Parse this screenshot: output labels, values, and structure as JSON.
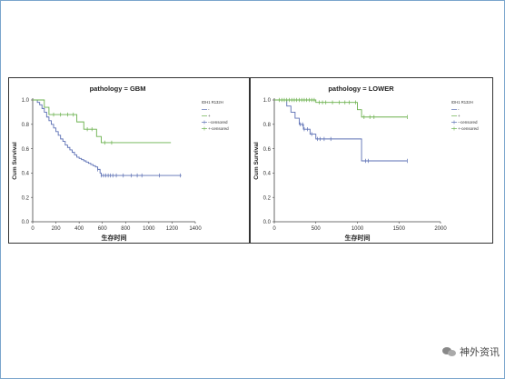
{
  "chart_data": [
    {
      "type": "line",
      "title": "pathology = GBM",
      "xlabel": "生存时间",
      "ylabel": "Cum Survival",
      "xlim": [
        0,
        1400
      ],
      "ylim": [
        0.0,
        1.0
      ],
      "xticks": [
        "0",
        "200",
        "400",
        "600",
        "800",
        "1000",
        "1200",
        "1400"
      ],
      "yticks": [
        "0.0",
        "0.2",
        "0.4",
        "0.6",
        "0.8",
        "1.0"
      ],
      "legend_title": "IDH1 R132H",
      "legend": [
        "-",
        "+",
        "--censored",
        "+-censored"
      ],
      "series": [
        {
          "color": "#5b6fb4",
          "steps": [
            [
              0,
              1.0
            ],
            [
              40,
              0.98
            ],
            [
              60,
              0.96
            ],
            [
              80,
              0.93
            ],
            [
              100,
              0.9
            ],
            [
              120,
              0.86
            ],
            [
              140,
              0.83
            ],
            [
              160,
              0.8
            ],
            [
              180,
              0.77
            ],
            [
              200,
              0.74
            ],
            [
              220,
              0.71
            ],
            [
              240,
              0.68
            ],
            [
              260,
              0.66
            ],
            [
              280,
              0.63
            ],
            [
              300,
              0.61
            ],
            [
              320,
              0.59
            ],
            [
              340,
              0.57
            ],
            [
              360,
              0.55
            ],
            [
              380,
              0.53
            ],
            [
              400,
              0.52
            ],
            [
              420,
              0.51
            ],
            [
              440,
              0.5
            ],
            [
              460,
              0.49
            ],
            [
              480,
              0.48
            ],
            [
              500,
              0.47
            ],
            [
              520,
              0.46
            ],
            [
              540,
              0.45
            ],
            [
              560,
              0.43
            ],
            [
              580,
              0.4
            ],
            [
              590,
              0.38
            ],
            [
              1280,
              0.38
            ]
          ],
          "censored": [
            560,
            590,
            610,
            630,
            650,
            670,
            690,
            720,
            780,
            850,
            900,
            940,
            1090,
            1270
          ]
        },
        {
          "color": "#6ab04c",
          "steps": [
            [
              0,
              1.0
            ],
            [
              100,
              0.94
            ],
            [
              140,
              0.88
            ],
            [
              380,
              0.82
            ],
            [
              440,
              0.76
            ],
            [
              550,
              0.7
            ],
            [
              590,
              0.65
            ],
            [
              1190,
              0.65
            ]
          ],
          "censored": [
            180,
            240,
            300,
            350,
            470,
            510,
            620,
            680
          ]
        }
      ]
    },
    {
      "type": "line",
      "title": "pathology = LOWER",
      "xlabel": "生存时间",
      "ylabel": "Cum Survival",
      "xlim": [
        0,
        2000
      ],
      "ylim": [
        0.0,
        1.0
      ],
      "xticks": [
        "0",
        "500",
        "1000",
        "1500",
        "2000"
      ],
      "yticks": [
        "0.0",
        "0.2",
        "0.4",
        "0.6",
        "0.8",
        "1.0"
      ],
      "legend_title": "IDH1 R132H",
      "legend": [
        "-",
        "+",
        "--censored",
        "+-censored"
      ],
      "series": [
        {
          "color": "#5b6fb4",
          "steps": [
            [
              0,
              1.0
            ],
            [
              150,
              0.95
            ],
            [
              200,
              0.9
            ],
            [
              250,
              0.85
            ],
            [
              300,
              0.8
            ],
            [
              350,
              0.76
            ],
            [
              430,
              0.72
            ],
            [
              500,
              0.68
            ],
            [
              1050,
              0.5
            ],
            [
              1600,
              0.5
            ]
          ],
          "censored": [
            310,
            340,
            360,
            400,
            450,
            520,
            550,
            600,
            680,
            1100,
            1130,
            1600
          ]
        },
        {
          "color": "#6ab04c",
          "steps": [
            [
              0,
              1.0
            ],
            [
              500,
              0.98
            ],
            [
              1000,
              0.92
            ],
            [
              1050,
              0.86
            ],
            [
              1600,
              0.86
            ]
          ],
          "censored": [
            60,
            90,
            120,
            150,
            180,
            210,
            240,
            270,
            300,
            330,
            360,
            390,
            420,
            450,
            480,
            540,
            580,
            620,
            700,
            780,
            850,
            900,
            980,
            1080,
            1150,
            1200,
            1600
          ]
        }
      ]
    }
  ],
  "watermark": {
    "text": "神外资讯",
    "icon": "wechat-icon"
  }
}
